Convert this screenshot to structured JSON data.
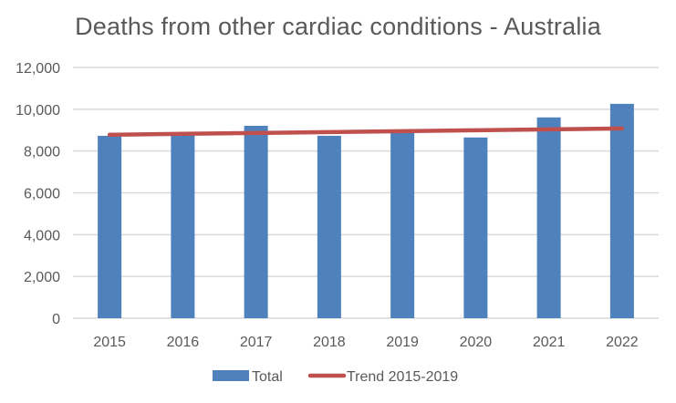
{
  "chart_data": {
    "type": "bar",
    "title": "Deaths from other cardiac conditions - Australia",
    "xlabel": "",
    "ylabel": "",
    "categories": [
      "2015",
      "2016",
      "2017",
      "2018",
      "2019",
      "2020",
      "2021",
      "2022"
    ],
    "series": [
      {
        "name": "Total",
        "type": "bar",
        "color": "#4F81BD",
        "values": [
          8730,
          8850,
          9210,
          8730,
          8870,
          8650,
          9610,
          10260
        ]
      },
      {
        "name": "Trend 2015-2019",
        "type": "line",
        "color": "#C0504D",
        "values": [
          8780,
          8823,
          8866,
          8909,
          8952,
          8995,
          9038,
          9081
        ]
      }
    ],
    "ylim": [
      0,
      12000
    ],
    "yticks": [
      0,
      2000,
      4000,
      6000,
      8000,
      10000,
      12000
    ],
    "ytick_labels": [
      "0",
      "2,000",
      "4,000",
      "6,000",
      "8,000",
      "10,000",
      "12,000"
    ],
    "grid": true,
    "legend": "bottom-center"
  }
}
